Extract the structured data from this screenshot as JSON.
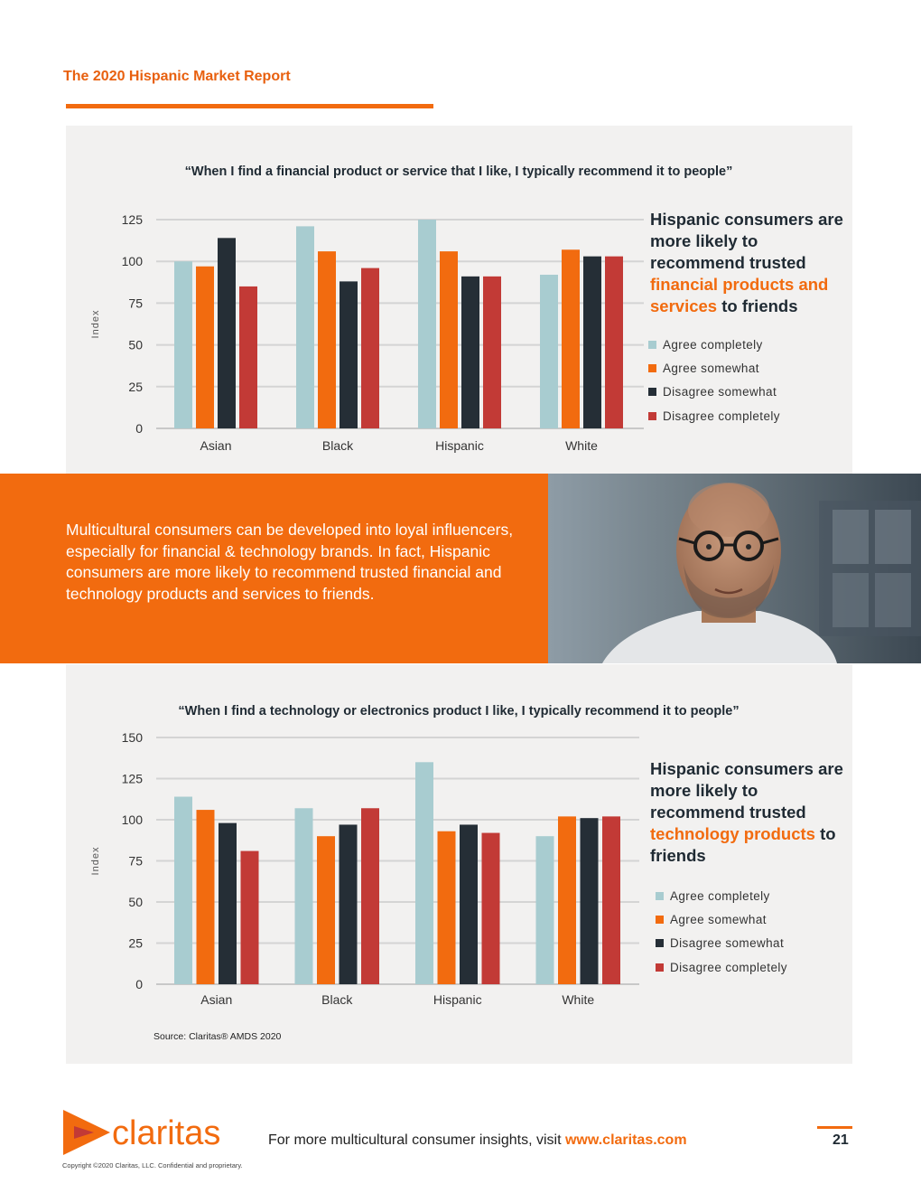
{
  "header": {
    "report_title": "The 2020 Hispanic Market Report"
  },
  "colors": {
    "agree_completely": "#a8ccd0",
    "agree_somewhat": "#f26b0f",
    "disagree_somewhat": "#252e36",
    "disagree_completely": "#c23a36",
    "accent": "#f26b0f",
    "panel": "#f2f1f0"
  },
  "chart_data": [
    {
      "type": "bar",
      "title": "“When I find a financial product or service that I like, I typically recommend it to people”",
      "xlabel": "",
      "ylabel": "Index",
      "ylim": [
        0,
        125
      ],
      "yticks": [
        0,
        25,
        50,
        75,
        100,
        125
      ],
      "grid": true,
      "categories": [
        "Asian",
        "Black",
        "Hispanic",
        "White"
      ],
      "series": [
        {
          "name": "Agree completely",
          "values": [
            100,
            121,
            125,
            92
          ]
        },
        {
          "name": "Agree somewhat",
          "values": [
            97,
            106,
            106,
            107
          ]
        },
        {
          "name": "Disagree somewhat",
          "values": [
            114,
            88,
            91,
            103
          ]
        },
        {
          "name": "Disagree completely",
          "values": [
            85,
            96,
            91,
            103
          ]
        }
      ],
      "legend": [
        "Agree completely",
        "Agree somewhat",
        "Disagree somewhat",
        "Disagree completely"
      ],
      "legend_position": "right"
    },
    {
      "type": "bar",
      "title": "“When I find a technology or electronics product I like, I typically recommend it to people”",
      "xlabel": "",
      "ylabel": "Index",
      "ylim": [
        0,
        150
      ],
      "yticks": [
        0,
        25,
        50,
        75,
        100,
        125,
        150
      ],
      "grid": true,
      "categories": [
        "Asian",
        "Black",
        "Hispanic",
        "White"
      ],
      "series": [
        {
          "name": "Agree completely",
          "values": [
            114,
            107,
            135,
            90
          ]
        },
        {
          "name": "Agree somewhat",
          "values": [
            106,
            90,
            93,
            102
          ]
        },
        {
          "name": "Disagree somewhat",
          "values": [
            98,
            97,
            97,
            101
          ]
        },
        {
          "name": "Disagree completely",
          "values": [
            81,
            107,
            92,
            102
          ]
        }
      ],
      "legend": [
        "Agree completely",
        "Agree somewhat",
        "Disagree somewhat",
        "Disagree completely"
      ],
      "legend_position": "right",
      "source": "Source: Claritas® AMDS 2020"
    }
  ],
  "callout1": {
    "part1": "Hispanic consumers are more likely to recommend trusted ",
    "highlight": "financial products and services",
    "part2": " to friends"
  },
  "callout2": {
    "part1": "Hispanic consumers are more likely to recommend trusted ",
    "highlight": "technology products",
    "part2": " to friends"
  },
  "band": {
    "text": "Multicultural consumers can be developed into loyal influencers, especially for financial & technology brands. In fact, Hispanic consumers are more likely to recommend trusted financial and technology products and services to friends."
  },
  "footer": {
    "logo_text": "claritas",
    "visit_text": "For more multicultural consumer insights, visit ",
    "url": "www.claritas.com",
    "page_number": "21",
    "copyright": "Copyright ©2020 Claritas, LLC. Confidential and proprietary."
  }
}
